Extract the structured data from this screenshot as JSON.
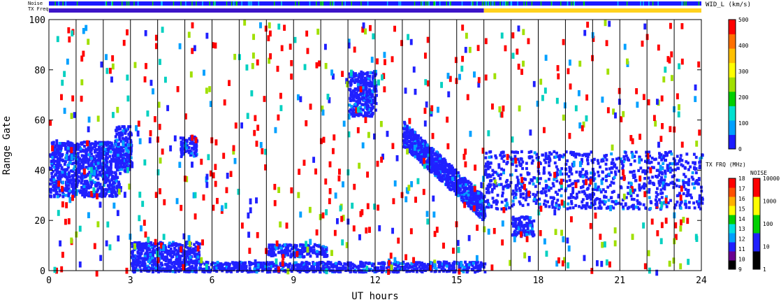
{
  "chart_data": {
    "type": "heatmap",
    "xlabel": "UT hours",
    "ylabel": "Range Gate",
    "xlim": [
      0,
      24
    ],
    "ylim": [
      0,
      100
    ],
    "x_ticks": [
      "0",
      "3",
      "6",
      "9",
      "12",
      "15",
      "18",
      "21",
      "24"
    ],
    "y_ticks": [
      "0",
      "20",
      "40",
      "60",
      "80",
      "100"
    ],
    "grid": "vertical lines every hour",
    "top_strips": [
      {
        "label": "Noise",
        "dominant_color": "#1a1aff"
      },
      {
        "label": "TX Freq",
        "segments": [
          {
            "from": 0,
            "to": 16,
            "color": "#3c14c8"
          },
          {
            "from": 16,
            "to": 24,
            "color": "#ffd21e"
          }
        ]
      }
    ],
    "colorbars": [
      {
        "title": "WID_L (km/s)",
        "ticks": [
          "0",
          "100",
          "200",
          "300",
          "400",
          "500"
        ],
        "colors": [
          "#1c1cff",
          "#00a0ff",
          "#00e0d0",
          "#00d000",
          "#a0e000",
          "#ffff00",
          "#ffc000",
          "#ff7000",
          "#ff0000"
        ]
      },
      {
        "title": "TX FRQ (MHz)",
        "ticks": [
          "9",
          "10",
          "11",
          "12",
          "13",
          "14",
          "15",
          "16",
          "17",
          "18"
        ],
        "colors": [
          "#000000",
          "#6a0090",
          "#2020ff",
          "#00a0ff",
          "#00e0e0",
          "#00d000",
          "#ffff00",
          "#ffb000",
          "#ff5000",
          "#ff0000"
        ]
      },
      {
        "title": "NOISE",
        "ticks": [
          "1",
          "10",
          "100",
          "1000",
          "10000"
        ],
        "colors": [
          "#000000",
          "#2020ff",
          "#00d000",
          "#ffff00",
          "#ff0000"
        ]
      }
    ],
    "echo_regions": [
      {
        "name": "early band",
        "x": [
          0,
          2.6
        ],
        "y": [
          30,
          52
        ],
        "color": "#2020ff"
      },
      {
        "name": "early patch",
        "x": [
          2.4,
          3.0
        ],
        "y": [
          40,
          58
        ],
        "color": "#2020ff"
      },
      {
        "name": "near-range band",
        "x": [
          3.0,
          5.5
        ],
        "y": [
          0,
          12
        ],
        "color": "#2020ff"
      },
      {
        "name": "mid patch",
        "x": [
          4.8,
          5.4
        ],
        "y": [
          46,
          54
        ],
        "color": "#2020ff"
      },
      {
        "name": "near-range band 2",
        "x": [
          8.0,
          10.2
        ],
        "y": [
          6,
          11
        ],
        "color": "#2020ff"
      },
      {
        "name": "ground strip",
        "x": [
          5.5,
          16
        ],
        "y": [
          0,
          4
        ],
        "color": "#2020ff"
      },
      {
        "name": "descending arc",
        "x": [
          13.0,
          16.0
        ],
        "y": [
          20,
          55
        ],
        "color": "#2020ff"
      },
      {
        "name": "late band",
        "x": [
          16.0,
          24.0
        ],
        "y": [
          25,
          48
        ],
        "color": "#2020ff"
      },
      {
        "name": "mid patch 2",
        "x": [
          11.0,
          12.0
        ],
        "y": [
          62,
          80
        ],
        "color": "#2020ff"
      },
      {
        "name": "late patch",
        "x": [
          17.0,
          17.8
        ],
        "y": [
          14,
          22
        ],
        "color": "#2020ff"
      }
    ]
  }
}
